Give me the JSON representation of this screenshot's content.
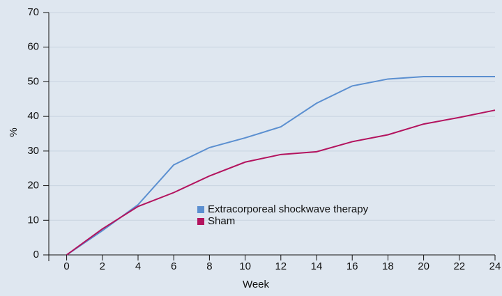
{
  "chart_data": {
    "type": "line",
    "x_label": "Week",
    "y_label": "%",
    "x": [
      0,
      2,
      4,
      6,
      8,
      10,
      12,
      14,
      16,
      18,
      20,
      22,
      24
    ],
    "series": [
      {
        "name": "Extracorporeal shockwave therapy",
        "color": "#5b8fd0",
        "values": [
          0,
          7,
          14.5,
          26,
          31,
          33.8,
          37,
          43.8,
          48.8,
          50.8,
          51.5,
          51.5,
          51.5
        ]
      },
      {
        "name": "Sham",
        "color": "#b3135e",
        "values": [
          0,
          7.5,
          14,
          18,
          22.8,
          26.8,
          29,
          29.8,
          32.7,
          34.7,
          37.8,
          39.7,
          41.8
        ]
      }
    ],
    "xlim": [
      -1,
      24
    ],
    "ylim": [
      0,
      70
    ],
    "xticks": [
      0,
      2,
      4,
      6,
      8,
      10,
      12,
      14,
      16,
      18,
      20,
      22,
      24
    ],
    "yticks": [
      0,
      10,
      20,
      30,
      40,
      50,
      60,
      70
    ],
    "grid": true
  }
}
